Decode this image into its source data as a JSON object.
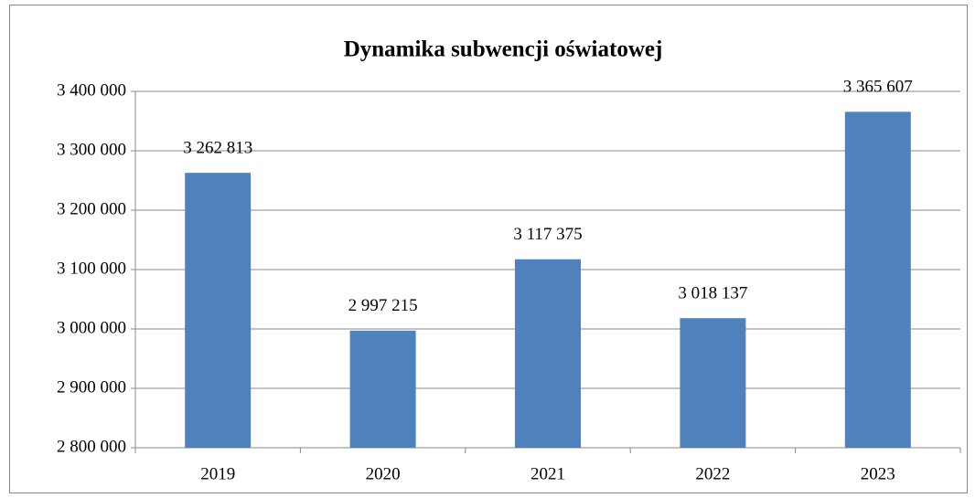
{
  "chart_data": {
    "type": "bar",
    "title": "Dynamika subwencji oświatowej",
    "categories": [
      "2019",
      "2020",
      "2021",
      "2022",
      "2023"
    ],
    "values": [
      3262813,
      2997215,
      3117375,
      3018137,
      3365607
    ],
    "value_labels": [
      "3 262 813",
      "2 997 215",
      "3 117 375",
      "3 018 137",
      "3 365 607"
    ],
    "color": "#4f81bd",
    "ylim": [
      2800000,
      3400000
    ],
    "yticks": [
      {
        "value": 2800000,
        "label": "2 800 000"
      },
      {
        "value": 2900000,
        "label": "2 900 000"
      },
      {
        "value": 3000000,
        "label": "3 000 000"
      },
      {
        "value": 3100000,
        "label": "3 100 000"
      },
      {
        "value": 3200000,
        "label": "3 200 000"
      },
      {
        "value": 3300000,
        "label": "3 300 000"
      },
      {
        "value": 3400000,
        "label": "3 400 000"
      }
    ],
    "grid": true
  }
}
